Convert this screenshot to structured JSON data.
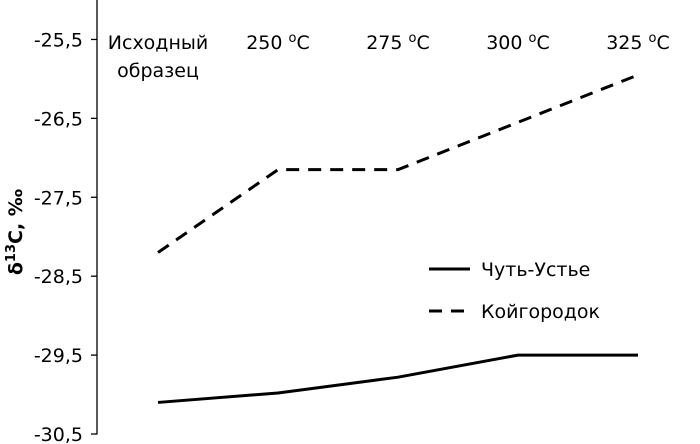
{
  "chart_data": {
    "type": "line",
    "categories": [
      [
        "Исходный",
        "образец"
      ],
      [
        "250 °C"
      ],
      [
        "275 °C"
      ],
      [
        "300 °C"
      ],
      [
        "325 °C"
      ]
    ],
    "series": [
      {
        "name": "Чуть-Устье",
        "values": [
          -30.1,
          -29.98,
          -29.78,
          -29.5,
          -29.5
        ],
        "style": "solid",
        "color": "#000000"
      },
      {
        "name": "Койгородок",
        "values": [
          -28.2,
          -27.15,
          -27.15,
          -26.55,
          -25.95
        ],
        "style": "dashed",
        "color": "#000000"
      }
    ],
    "ylabel": "δ13C, ‰",
    "ylim": [
      -30.5,
      -25.0
    ],
    "yticks": [
      -30.5,
      -29.5,
      -28.5,
      -27.5,
      -26.5,
      -25.5
    ],
    "ytick_labels": [
      "-30,5",
      "-29,5",
      "-28,5",
      "-27,5",
      "-26,5",
      "-25,5"
    ],
    "x_axis_position": "top",
    "grid": false,
    "legend_position": "right"
  }
}
